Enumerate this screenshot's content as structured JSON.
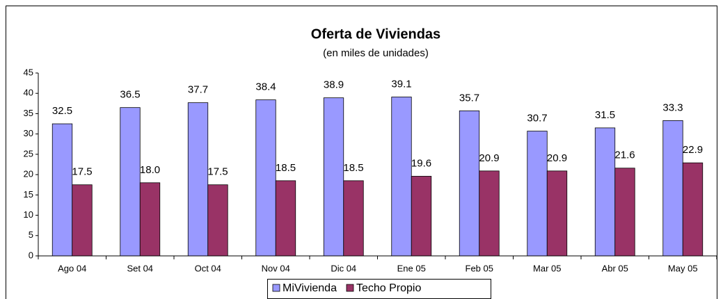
{
  "chart_data": {
    "type": "bar",
    "title": "Oferta de Viviendas",
    "subtitle": "(en miles de unidades)",
    "categories": [
      "Ago 04",
      "Set 04",
      "Oct 04",
      "Nov 04",
      "Dic 04",
      "Ene 05",
      "Feb 05",
      "Mar 05",
      "Abr 05",
      "May 05"
    ],
    "series": [
      {
        "name": "MiVivienda",
        "color": "#9999ff",
        "values": [
          32.5,
          36.5,
          37.7,
          38.4,
          38.9,
          39.1,
          35.7,
          30.7,
          31.5,
          33.3
        ],
        "value_labels": [
          "32.5",
          "36.5",
          "37.7",
          "38.4",
          "38.9",
          "39.1",
          "35.7",
          "30.7",
          "31.5",
          "33.3"
        ]
      },
      {
        "name": "Techo Propio",
        "color": "#993366",
        "values": [
          17.5,
          18,
          17.5,
          18.5,
          18.5,
          19.6,
          20.9,
          20.9,
          21.6,
          22.9
        ],
        "value_labels": [
          "17.5",
          "18.0",
          "17.5",
          "18.5",
          "18.5",
          "19.6",
          "20.9",
          "20.9",
          "21.6",
          "22.9"
        ]
      }
    ],
    "ylim": [
      0,
      45
    ],
    "yticks": [
      0,
      5,
      10,
      15,
      20,
      25,
      30,
      35,
      40,
      45
    ],
    "grid": false,
    "legend": "bottom"
  }
}
